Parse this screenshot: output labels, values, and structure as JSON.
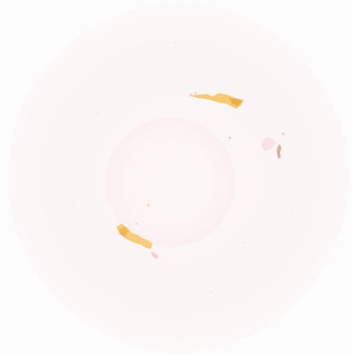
{
  "image": {
    "colors": {
      "background": "#fdfcfc",
      "disc": "#fcf5f6",
      "blob_yellow": "#f6c25a",
      "blob_gold": "#f2b34a",
      "speck_pink": "#f3b6b8"
    }
  }
}
